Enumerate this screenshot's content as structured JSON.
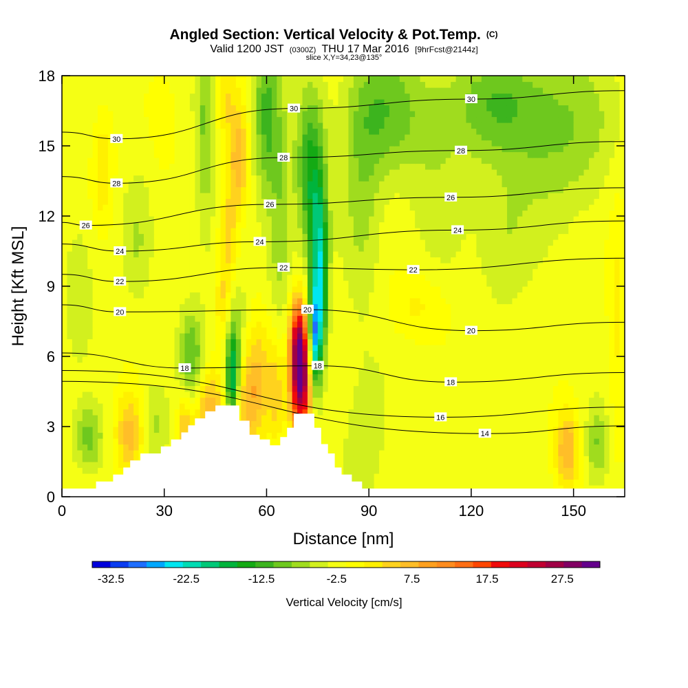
{
  "title": {
    "main": "Angled Section: Vertical Velocity & Pot.Temp.",
    "main_unit": "(C)",
    "valid_prefix": "Valid 1200 JST",
    "valid_zulu": "(0300Z)",
    "valid_date": "THU 17 Mar 2016",
    "forecast": "[9hrFcst@2144z]",
    "slice": "slice X,Y=34,23@135°"
  },
  "chart_data": {
    "type": "heatmap",
    "xlabel": "Distance [nm]",
    "ylabel": "Height [Kft MSL]",
    "xlim": [
      0,
      165
    ],
    "ylim": [
      0,
      18
    ],
    "x_ticks": [
      0,
      30,
      60,
      90,
      120,
      150
    ],
    "y_ticks": [
      0,
      3,
      6,
      9,
      12,
      15,
      18
    ],
    "colorbar": {
      "label": "Vertical Velocity [cm/s]",
      "tick_labels": [
        "-32.5",
        "-22.5",
        "-12.5",
        "-2.5",
        "7.5",
        "17.5",
        "27.5"
      ],
      "tick_values": [
        -32.5,
        -22.5,
        -12.5,
        -2.5,
        7.5,
        17.5,
        27.5
      ],
      "range": [
        -35,
        32.5
      ],
      "step": 2.5,
      "colors": [
        "#0000dc",
        "#0a3cf0",
        "#1e6eff",
        "#00a8ff",
        "#00e6f0",
        "#00dcb4",
        "#00c878",
        "#00b43c",
        "#14aa14",
        "#3cb41e",
        "#6ec81e",
        "#a0dc1e",
        "#d2f01e",
        "#f5ff14",
        "#ffff00",
        "#fff000",
        "#ffd21e",
        "#ffbe28",
        "#ffa01e",
        "#ff8c1e",
        "#ff6e14",
        "#ff4600",
        "#f00a0a",
        "#dc001e",
        "#c00032",
        "#a00046",
        "#820064",
        "#64008c"
      ]
    },
    "potential_temperature_contours": [
      {
        "value": 14,
        "label_positions": [
          [
            124,
            2.7
          ]
        ]
      },
      {
        "value": 16,
        "label_positions": [
          [
            111,
            3.4
          ]
        ]
      },
      {
        "value": 18,
        "label_positions": [
          [
            36,
            5.5
          ],
          [
            75,
            5.6
          ],
          [
            114,
            4.9
          ]
        ]
      },
      {
        "value": 20,
        "label_positions": [
          [
            17,
            7.9
          ],
          [
            72,
            8.0
          ],
          [
            120,
            7.1
          ]
        ]
      },
      {
        "value": 22,
        "label_positions": [
          [
            17,
            9.2
          ],
          [
            65,
            9.8
          ],
          [
            103,
            9.7
          ]
        ]
      },
      {
        "value": 24,
        "label_positions": [
          [
            17,
            10.5
          ],
          [
            58,
            10.9
          ],
          [
            116,
            11.4
          ]
        ]
      },
      {
        "value": 26,
        "label_positions": [
          [
            7,
            11.6
          ],
          [
            61,
            12.5
          ],
          [
            114,
            12.8
          ]
        ]
      },
      {
        "value": 28,
        "label_positions": [
          [
            16,
            13.4
          ],
          [
            65,
            14.5
          ],
          [
            117,
            14.8
          ]
        ]
      },
      {
        "value": 30,
        "label_positions": [
          [
            16,
            15.3
          ],
          [
            68,
            16.6
          ],
          [
            120,
            17.0
          ]
        ]
      }
    ],
    "terrain_profile": [
      [
        0,
        0.35
      ],
      [
        10,
        0.35
      ],
      [
        10,
        0.65
      ],
      [
        15,
        0.65
      ],
      [
        15,
        0.95
      ],
      [
        18,
        0.95
      ],
      [
        18,
        1.25
      ],
      [
        20,
        1.25
      ],
      [
        20,
        1.55
      ],
      [
        23,
        1.55
      ],
      [
        23,
        1.85
      ],
      [
        29,
        1.85
      ],
      [
        29,
        2.15
      ],
      [
        32,
        2.15
      ],
      [
        32,
        2.45
      ],
      [
        35,
        2.45
      ],
      [
        35,
        2.75
      ],
      [
        37,
        2.75
      ],
      [
        37,
        3.05
      ],
      [
        39,
        3.05
      ],
      [
        39,
        3.35
      ],
      [
        42,
        3.35
      ],
      [
        42,
        3.65
      ],
      [
        45,
        3.65
      ],
      [
        45,
        3.9
      ],
      [
        52,
        3.9
      ],
      [
        52,
        3.25
      ],
      [
        55,
        3.25
      ],
      [
        55,
        2.65
      ],
      [
        58,
        2.65
      ],
      [
        58,
        2.45
      ],
      [
        61,
        2.45
      ],
      [
        61,
        2.2
      ],
      [
        64,
        2.2
      ],
      [
        64,
        2.55
      ],
      [
        66,
        2.55
      ],
      [
        66,
        2.95
      ],
      [
        68,
        2.95
      ],
      [
        68,
        3.55
      ],
      [
        74,
        3.55
      ],
      [
        74,
        2.95
      ],
      [
        76,
        2.95
      ],
      [
        76,
        2.25
      ],
      [
        78,
        2.25
      ],
      [
        78,
        1.85
      ],
      [
        80,
        1.85
      ],
      [
        80,
        1.25
      ],
      [
        82,
        1.25
      ],
      [
        82,
        0.95
      ],
      [
        85,
        0.95
      ],
      [
        85,
        0.65
      ],
      [
        88,
        0.65
      ],
      [
        88,
        0.35
      ],
      [
        165,
        0.35
      ]
    ],
    "velocity_features": [
      {
        "x": 70,
        "y": 5.2,
        "sx": 2.2,
        "sy": 1.7,
        "v": 34
      },
      {
        "x": 69,
        "y": 6.9,
        "sx": 1.5,
        "sy": 1.3,
        "v": 13
      },
      {
        "x": 74,
        "y": 6.7,
        "sx": 1.2,
        "sy": 1.6,
        "v": -24
      },
      {
        "x": 76,
        "y": 8.5,
        "sx": 1.4,
        "sy": 2.2,
        "v": -14
      },
      {
        "x": 50,
        "y": 5.0,
        "sx": 1.4,
        "sy": 1.4,
        "v": -16
      },
      {
        "x": 51,
        "y": 7.0,
        "sx": 2.2,
        "sy": 1.8,
        "v": -6
      },
      {
        "x": 38,
        "y": 5.9,
        "sx": 2.5,
        "sy": 1.5,
        "v": -9
      },
      {
        "x": 58,
        "y": 5.0,
        "sx": 3.0,
        "sy": 1.8,
        "v": 8
      },
      {
        "x": 43,
        "y": 3.7,
        "sx": 3.0,
        "sy": 1.2,
        "v": 11
      },
      {
        "x": 36,
        "y": 3.0,
        "sx": 1.5,
        "sy": 1.0,
        "v": 9
      },
      {
        "x": 54,
        "y": 3.9,
        "sx": 2.5,
        "sy": 1.5,
        "v": 7
      },
      {
        "x": 63,
        "y": 4.5,
        "sx": 1.5,
        "sy": 1.5,
        "v": 6
      },
      {
        "x": 20,
        "y": 2.7,
        "sx": 3.0,
        "sy": 1.2,
        "v": 10
      },
      {
        "x": 8,
        "y": 2.5,
        "sx": 3.0,
        "sy": 1.0,
        "v": -8
      },
      {
        "x": 27,
        "y": 3.2,
        "sx": 3.0,
        "sy": 1.2,
        "v": -5
      },
      {
        "x": 89,
        "y": 2.6,
        "sx": 5.0,
        "sy": 2.5,
        "v": -3
      },
      {
        "x": 148,
        "y": 2.0,
        "sx": 2.5,
        "sy": 1.2,
        "v": 11
      },
      {
        "x": 157,
        "y": 2.2,
        "sx": 2.5,
        "sy": 1.2,
        "v": -7
      },
      {
        "x": 104,
        "y": 8.2,
        "sx": 6.0,
        "sy": 1.0,
        "v": 4
      },
      {
        "x": 163,
        "y": 8.0,
        "sx": 2.0,
        "sy": 4.0,
        "v": 4
      },
      {
        "x": 48,
        "y": 17.0,
        "sx": 2.2,
        "sy": 1.2,
        "v": 5
      },
      {
        "x": 52,
        "y": 14.5,
        "sx": 2.0,
        "sy": 1.6,
        "v": 10
      },
      {
        "x": 49,
        "y": 11.0,
        "sx": 1.8,
        "sy": 2.0,
        "v": 7
      },
      {
        "x": 47,
        "y": 8.3,
        "sx": 1.5,
        "sy": 1.2,
        "v": 5
      },
      {
        "x": 42,
        "y": 16.0,
        "sx": 2.0,
        "sy": 3.5,
        "v": -7
      },
      {
        "x": 60,
        "y": 16.5,
        "sx": 3.0,
        "sy": 2.5,
        "v": -10
      },
      {
        "x": 73,
        "y": 14.0,
        "sx": 3.0,
        "sy": 2.5,
        "v": -12
      },
      {
        "x": 75,
        "y": 11.0,
        "sx": 2.0,
        "sy": 2.0,
        "v": -10
      },
      {
        "x": 64,
        "y": 11.5,
        "sx": 2.5,
        "sy": 3.0,
        "v": -6
      },
      {
        "x": 88,
        "y": 13.0,
        "sx": 4.0,
        "sy": 3.5,
        "v": -5
      },
      {
        "x": 95,
        "y": 16.5,
        "sx": 8.0,
        "sy": 2.0,
        "v": -8
      },
      {
        "x": 125,
        "y": 16.8,
        "sx": 10.0,
        "sy": 1.6,
        "v": -7
      },
      {
        "x": 145,
        "y": 15.8,
        "sx": 12.0,
        "sy": 2.5,
        "v": -7
      },
      {
        "x": 110,
        "y": 13.5,
        "sx": 6.0,
        "sy": 3.0,
        "v": -3
      },
      {
        "x": 130,
        "y": 11.0,
        "sx": 6.0,
        "sy": 2.0,
        "v": -4
      },
      {
        "x": 12,
        "y": 14.0,
        "sx": 2.0,
        "sy": 1.5,
        "v": 6
      },
      {
        "x": 22,
        "y": 11.0,
        "sx": 3.0,
        "sy": 2.0,
        "v": -4
      },
      {
        "x": 5,
        "y": 9.0,
        "sx": 3.0,
        "sy": 2.0,
        "v": -4
      },
      {
        "x": 30,
        "y": 16.0,
        "sx": 3.0,
        "sy": 1.5,
        "v": 2
      }
    ]
  }
}
